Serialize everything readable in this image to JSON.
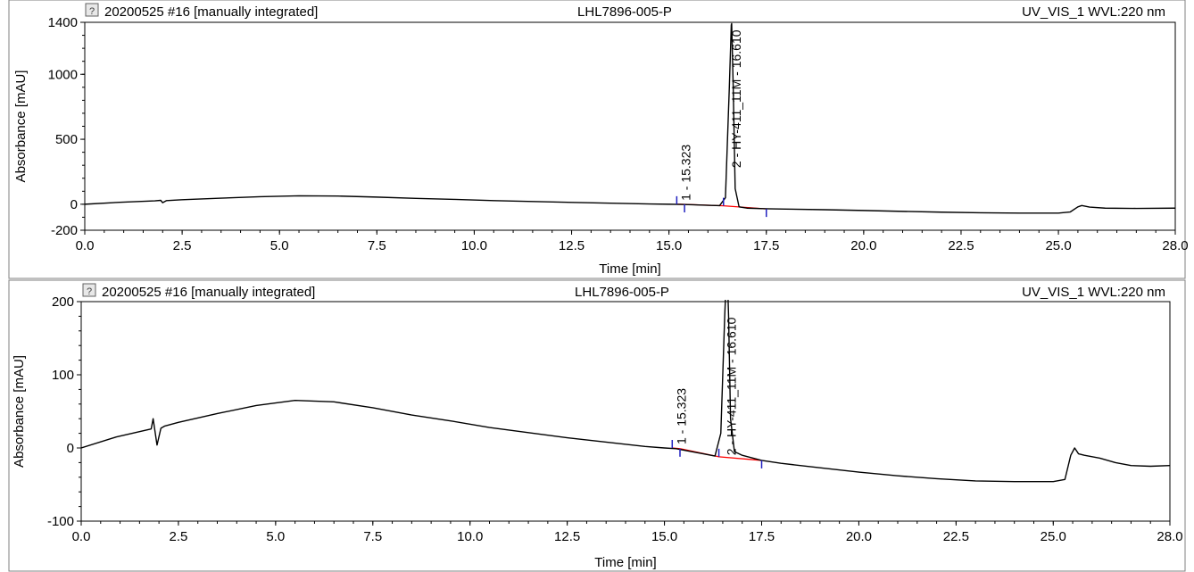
{
  "panels": [
    {
      "sample_label": "20200525 #16 [manually integrated]",
      "sample_name": "LHL7896-005-P",
      "channel": "UV_VIS_1 WVL:220 nm"
    },
    {
      "sample_label": "20200525 #16 [manually integrated]",
      "sample_name": "LHL7896-005-P",
      "channel": "UV_VIS_1 WVL:220 nm"
    }
  ],
  "chart_data": [
    {
      "type": "line",
      "title": "LHL7896-005-P",
      "xlabel": "Time [min]",
      "ylabel": "Absorbance [mAU]",
      "xlim": [
        0,
        28
      ],
      "ylim": [
        -200,
        1400
      ],
      "xticks": [
        "0.0",
        "2.5",
        "5.0",
        "7.5",
        "10.0",
        "12.5",
        "15.0",
        "17.5",
        "20.0",
        "22.5",
        "25.0",
        "28.0"
      ],
      "xtick_values": [
        0,
        2.5,
        5,
        7.5,
        10,
        12.5,
        15,
        17.5,
        20,
        22.5,
        25,
        28
      ],
      "yticks": [
        "-200",
        "0",
        "500",
        "1000",
        "1400"
      ],
      "ytick_values": [
        -200,
        0,
        500,
        1000,
        1400
      ],
      "series": [
        {
          "x": [
            0,
            0.9,
            1.8,
            1.95,
            2.0,
            2.1,
            2.5,
            3.5,
            4.5,
            5.5,
            6.5,
            7.5,
            8.5,
            9.5,
            10.5,
            11.5,
            12.5,
            13.5,
            14.5,
            15.0,
            15.3,
            15.6,
            16.0,
            16.3,
            16.45,
            16.55,
            16.6,
            16.61,
            16.65,
            16.7,
            16.8,
            17.0,
            17.5,
            18,
            19,
            20,
            21,
            22,
            23,
            24,
            25,
            25.3,
            25.5,
            25.6,
            25.8,
            26.2,
            27,
            28
          ],
          "y": [
            0,
            15,
            26,
            30,
            12,
            28,
            35,
            47,
            58,
            65,
            63,
            55,
            45,
            37,
            28,
            21,
            14,
            8,
            2,
            0,
            -1,
            -4,
            -8,
            -11,
            50,
            900,
            1380,
            1390,
            900,
            120,
            -20,
            -30,
            -35,
            -37,
            -42,
            -48,
            -55,
            -61,
            -66,
            -68,
            -68,
            -60,
            -20,
            -10,
            -22,
            -30,
            -32,
            -30
          ],
          "color": "#000000"
        }
      ],
      "baseline": {
        "x": [
          15.2,
          15.4,
          16.4,
          17.5
        ],
        "y": [
          0,
          -1,
          -12,
          -36
        ],
        "color": "#ff0000"
      },
      "peaks": [
        {
          "label": "1 - 15.323",
          "rt": 15.323
        },
        {
          "label": "2 - HY-411_11M - 16.610",
          "rt": 16.61
        }
      ],
      "markers_time": [
        15.2,
        15.4,
        16.4,
        17.5
      ]
    },
    {
      "type": "line",
      "title": "LHL7896-005-P",
      "xlabel": "Time [min]",
      "ylabel": "Absorbance [mAU]",
      "xlim": [
        0,
        28
      ],
      "ylim": [
        -100,
        200
      ],
      "xticks": [
        "0.0",
        "2.5",
        "5.0",
        "7.5",
        "10.0",
        "12.5",
        "15.0",
        "17.5",
        "20.0",
        "22.5",
        "25.0",
        "28.0"
      ],
      "xtick_values": [
        0,
        2.5,
        5,
        7.5,
        10,
        12.5,
        15,
        17.5,
        20,
        22.5,
        25,
        28
      ],
      "yticks": [
        "-100",
        "0",
        "100",
        "200"
      ],
      "ytick_values": [
        -100,
        0,
        100,
        200
      ],
      "series": [
        {
          "x": [
            0,
            0.9,
            1.8,
            1.85,
            1.95,
            2.05,
            2.15,
            2.5,
            3.5,
            4.5,
            5.5,
            6.5,
            7.5,
            8.5,
            9.5,
            10.5,
            11.5,
            12.5,
            13.5,
            14.5,
            15.0,
            15.3,
            15.6,
            16.0,
            16.3,
            16.45,
            16.55,
            16.6,
            16.61,
            16.65,
            16.7,
            16.8,
            17.0,
            17.5,
            18,
            19,
            20,
            21,
            22,
            23,
            24,
            25,
            25.3,
            25.45,
            25.55,
            25.65,
            25.8,
            26.2,
            26.6,
            27,
            27.5,
            28
          ],
          "y": [
            0,
            15,
            26,
            40,
            4,
            27,
            30,
            35,
            47,
            58,
            65,
            63,
            55,
            45,
            37,
            28,
            21,
            14,
            8,
            2,
            0,
            -1,
            -4,
            -8,
            -11,
            20,
            180,
            245,
            250,
            180,
            40,
            -5,
            -10,
            -17,
            -21,
            -27,
            -33,
            -38,
            -42,
            -45,
            -46,
            -46,
            -43,
            -10,
            0,
            -8,
            -10,
            -14,
            -20,
            -24,
            -25,
            -24
          ],
          "color": "#000000"
        }
      ],
      "baseline": {
        "x": [
          15.2,
          15.4,
          16.4,
          17.5
        ],
        "y": [
          0,
          -1,
          -12,
          -17
        ],
        "color": "#ff0000"
      },
      "peaks": [
        {
          "label": "1 - 15.323",
          "rt": 15.323
        },
        {
          "label": "2 - HY-411_11M - 16.610",
          "rt": 16.61
        }
      ],
      "markers_time": [
        15.2,
        15.4,
        16.4,
        17.5
      ]
    }
  ]
}
